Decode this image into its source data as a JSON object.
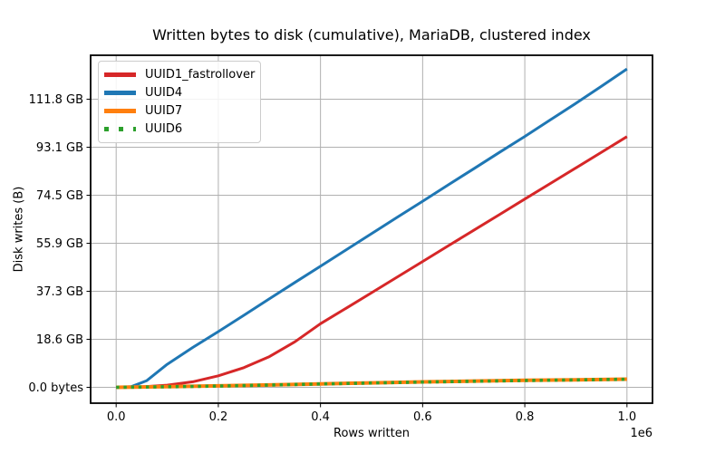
{
  "figure": {
    "background": "#ffffff",
    "spine_color": "#000000",
    "tick_color": "#000000"
  },
  "chart_data": {
    "type": "line",
    "title": "Written bytes to disk (cumulative), MariaDB, clustered index",
    "xlabel": "Rows written",
    "ylabel": "Disk writes (B)",
    "x_offset_label": "1e6",
    "x_unit": "1e6 rows",
    "y_unit": "1e9 bytes",
    "xlim": [
      -0.05,
      1.05
    ],
    "ylim": [
      -6.6,
      138.3
    ],
    "grid": true,
    "grid_color": "#b0b0b0",
    "legend_loc": "upper left",
    "xticks": [
      {
        "v": 0.0,
        "label": "0.0"
      },
      {
        "v": 0.2,
        "label": "0.2"
      },
      {
        "v": 0.4,
        "label": "0.4"
      },
      {
        "v": 0.6,
        "label": "0.6"
      },
      {
        "v": 0.8,
        "label": "0.8"
      },
      {
        "v": 1.0,
        "label": "1.0"
      }
    ],
    "yticks": [
      {
        "v": 0,
        "label": "0.0 bytes"
      },
      {
        "v": 20,
        "label": "18.6 GB"
      },
      {
        "v": 40,
        "label": "37.3 GB"
      },
      {
        "v": 60,
        "label": "55.9 GB"
      },
      {
        "v": 80,
        "label": "74.5 GB"
      },
      {
        "v": 100,
        "label": "93.1 GB"
      },
      {
        "v": 120,
        "label": "111.8 GB"
      }
    ],
    "series": [
      {
        "name": "UUID1_fastrollover",
        "color": "#d62728",
        "linestyle": "solid",
        "linewidth": 3,
        "x": [
          0,
          0.05,
          0.1,
          0.15,
          0.2,
          0.25,
          0.3,
          0.35,
          0.4,
          0.45,
          0.5,
          0.55,
          0.6,
          0.65,
          0.7,
          0.75,
          0.8,
          0.85,
          0.9,
          0.95,
          1.0
        ],
        "y": [
          0,
          0.2,
          0.9,
          2.3,
          4.8,
          8.2,
          12.8,
          19.0,
          26.5,
          32.9,
          39.4,
          45.9,
          52.4,
          58.9,
          65.4,
          71.9,
          78.4,
          84.9,
          91.4,
          97.9,
          104.4
        ]
      },
      {
        "name": "UUID4",
        "color": "#1f77b4",
        "linestyle": "solid",
        "linewidth": 3,
        "x": [
          0,
          0.03,
          0.06,
          0.1,
          0.15,
          0.2,
          0.25,
          0.3,
          0.35,
          0.4,
          0.45,
          0.5,
          0.55,
          0.6,
          0.65,
          0.7,
          0.75,
          0.8,
          0.85,
          0.9,
          0.95,
          1.0
        ],
        "y": [
          0,
          0.3,
          2.8,
          9.6,
          16.6,
          23.2,
          30.0,
          36.9,
          43.7,
          50.4,
          57.2,
          64.0,
          70.8,
          77.5,
          84.3,
          91.0,
          97.8,
          104.5,
          111.4,
          118.3,
          125.4,
          132.6
        ]
      },
      {
        "name": "UUID7",
        "color": "#ff7f0e",
        "linestyle": "solid",
        "linewidth": 4,
        "x": [
          0,
          0.1,
          0.2,
          0.3,
          0.4,
          0.5,
          0.6,
          0.7,
          0.8,
          0.9,
          1.0
        ],
        "y": [
          0,
          0.25,
          0.6,
          1.0,
          1.45,
          1.85,
          2.25,
          2.6,
          2.9,
          3.15,
          3.4
        ]
      },
      {
        "name": "UUID6",
        "color": "#2ca02c",
        "linestyle": "dotted",
        "linewidth": 3.6,
        "x": [
          0,
          0.1,
          0.2,
          0.3,
          0.4,
          0.5,
          0.6,
          0.7,
          0.8,
          0.9,
          1.0
        ],
        "y": [
          0,
          0.22,
          0.55,
          0.95,
          1.4,
          1.8,
          2.2,
          2.55,
          2.85,
          3.1,
          3.35
        ]
      }
    ]
  }
}
